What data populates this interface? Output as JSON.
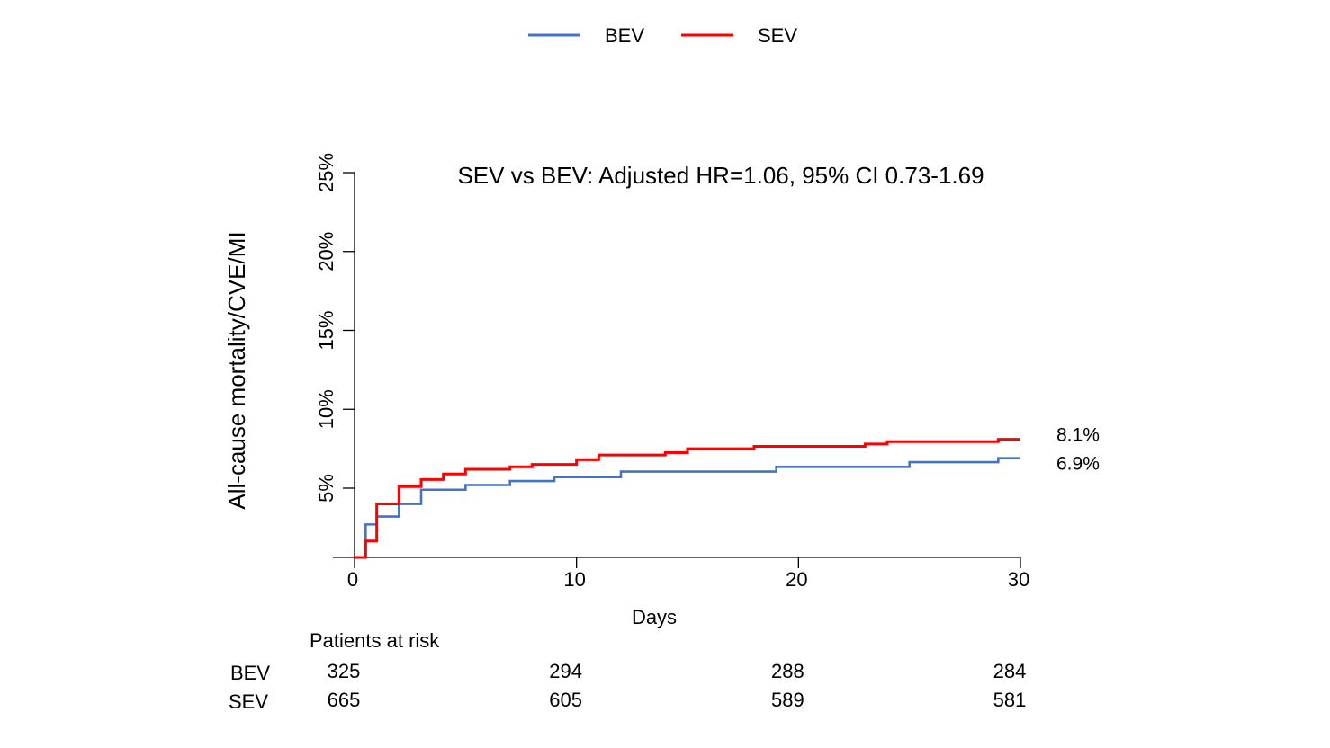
{
  "chart_data": {
    "type": "line",
    "subtype": "kaplan-meier step",
    "title": "SEV vs BEV: Adjusted HR=1.06, 95% CI 0.73-1.69",
    "xlabel": "Days",
    "ylabel": "All-cause mortality/CVE/MI",
    "xlim": [
      0,
      30
    ],
    "ylim": [
      0,
      25
    ],
    "x_ticks": [
      0,
      10,
      20,
      30
    ],
    "x_tick_labels": [
      "0",
      "10",
      "20",
      "30"
    ],
    "y_ticks": [
      5,
      10,
      15,
      20,
      25
    ],
    "y_tick_labels": [
      "5%",
      "10%",
      "15%",
      "20%",
      "25%"
    ],
    "grid": false,
    "legend_position": "top-center",
    "series": [
      {
        "name": "BEV",
        "color": "#4472C4",
        "end_label": "6.9%",
        "steps": [
          [
            0,
            0
          ],
          [
            0.5,
            2.7
          ],
          [
            1,
            3.2
          ],
          [
            2,
            4.0
          ],
          [
            3,
            4.9
          ],
          [
            5,
            5.2
          ],
          [
            7,
            5.45
          ],
          [
            9,
            5.7
          ],
          [
            12,
            6.05
          ],
          [
            19,
            6.35
          ],
          [
            25,
            6.65
          ],
          [
            29,
            6.9
          ],
          [
            30,
            6.9
          ]
        ]
      },
      {
        "name": "SEV",
        "color": "#FF0000",
        "end_label": "8.1%",
        "steps": [
          [
            0,
            0
          ],
          [
            0.5,
            1.65
          ],
          [
            1,
            4.0
          ],
          [
            2,
            5.1
          ],
          [
            3,
            5.55
          ],
          [
            4,
            5.9
          ],
          [
            5,
            6.2
          ],
          [
            7,
            6.35
          ],
          [
            8,
            6.5
          ],
          [
            10,
            6.8
          ],
          [
            11,
            7.1
          ],
          [
            14,
            7.25
          ],
          [
            15,
            7.5
          ],
          [
            18,
            7.65
          ],
          [
            23,
            7.8
          ],
          [
            24,
            7.95
          ],
          [
            29,
            8.1
          ],
          [
            30,
            8.1
          ]
        ]
      }
    ],
    "risk_table": {
      "title": "Patients at risk",
      "days": [
        0,
        10,
        20,
        30
      ],
      "rows": [
        {
          "label": "BEV",
          "values": [
            "325",
            "294",
            "288",
            "284"
          ]
        },
        {
          "label": "SEV",
          "values": [
            "665",
            "605",
            "589",
            "581"
          ]
        }
      ]
    }
  }
}
